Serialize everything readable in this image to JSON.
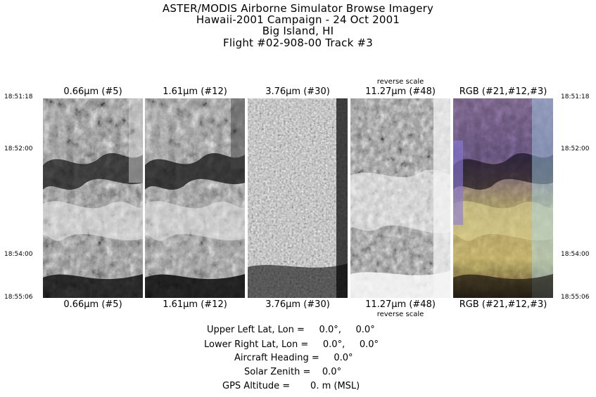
{
  "header": {
    "line1": "ASTER/MODIS Airborne Simulator Browse Imagery",
    "line2": "Hawaii-2001 Campaign - 24 Oct 2001",
    "line3": "Big Island, HI",
    "line4": "Flight #02-908-00 Track #3"
  },
  "panels": [
    {
      "label": "0.66μm (#5)",
      "note": ""
    },
    {
      "label": "1.61μm (#12)",
      "note": ""
    },
    {
      "label": "3.76μm (#30)",
      "note": ""
    },
    {
      "label": "11.27μm (#48)",
      "note": "reverse scale"
    },
    {
      "label": "RGB (#21,#12,#3)",
      "note": ""
    }
  ],
  "times": [
    "18:51:18",
    "18:52:00",
    "18:54:00",
    "18:55:06"
  ],
  "info": {
    "upper_left": "Upper Left Lat, Lon =     0.0°,     0.0°",
    "lower_right": "Lower Right Lat, Lon =     0.0°,     0.0°",
    "heading": "Aircraft Heading =     0.0°",
    "solar": "Solar Zenith =    0.0°",
    "gps": "GPS Altitude =       0. m (MSL)"
  }
}
